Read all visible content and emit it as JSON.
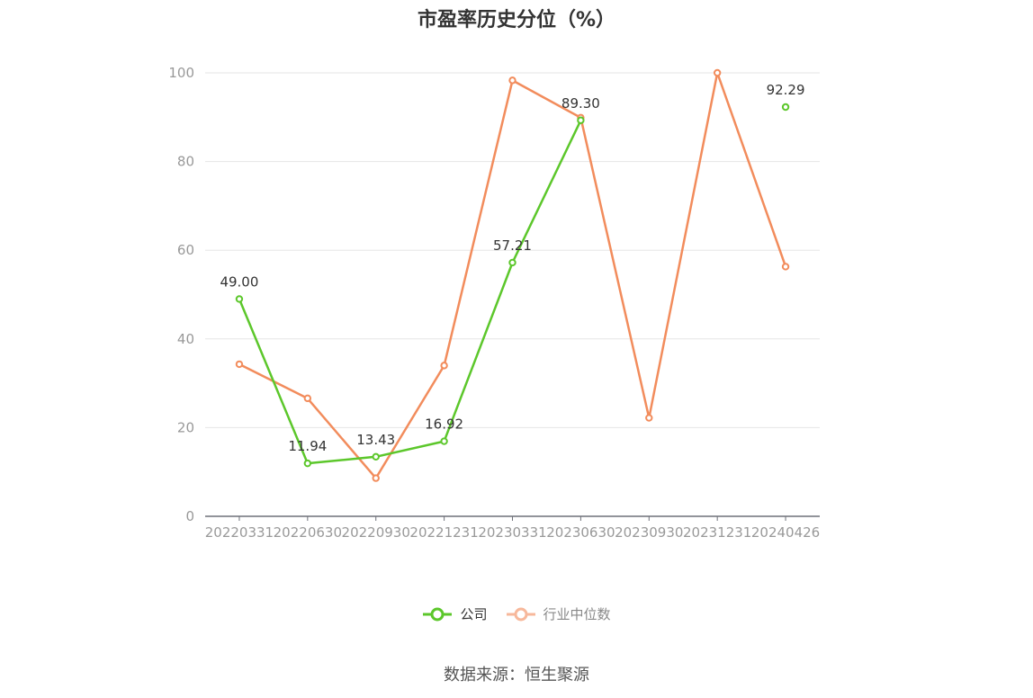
{
  "chart_data": {
    "type": "line",
    "title": "市盈率历史分位（%）",
    "categories": [
      "20220331",
      "20220630",
      "20220930",
      "20221231",
      "20230331",
      "20230630",
      "20230930",
      "20231231",
      "20240426"
    ],
    "ylim": [
      0,
      100
    ],
    "yticks": [
      0,
      20,
      40,
      60,
      80,
      100
    ],
    "grid": true,
    "legend_position": "bottom",
    "series": [
      {
        "name": "公司",
        "color": "#5cc72b",
        "values": [
          49.0,
          11.94,
          13.43,
          16.92,
          57.21,
          89.3,
          null,
          null,
          92.29
        ],
        "labels": [
          "49.00",
          "11.94",
          "13.43",
          "16.92",
          "57.21",
          "89.30",
          null,
          null,
          "92.29"
        ]
      },
      {
        "name": "行业中位数",
        "color": "#f28c5c",
        "values": [
          34.3,
          26.6,
          8.6,
          34.0,
          98.3,
          89.9,
          22.2,
          100.0,
          56.3
        ]
      }
    ],
    "source": "数据来源：恒生聚源"
  }
}
